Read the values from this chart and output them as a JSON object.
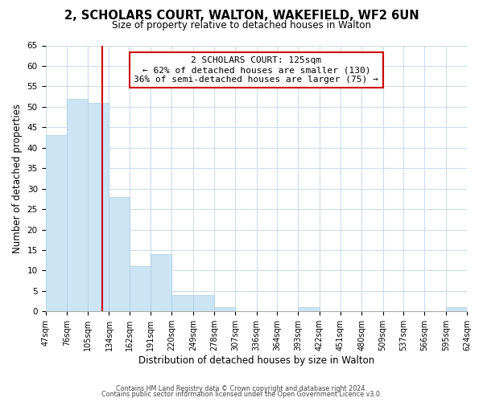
{
  "title": "2, SCHOLARS COURT, WALTON, WAKEFIELD, WF2 6UN",
  "subtitle": "Size of property relative to detached houses in Walton",
  "xlabel": "Distribution of detached houses by size in Walton",
  "ylabel": "Number of detached properties",
  "bar_edges": [
    47,
    76,
    105,
    134,
    162,
    191,
    220,
    249,
    278,
    307,
    336,
    364,
    393,
    422,
    451,
    480,
    509,
    537,
    566,
    595,
    624
  ],
  "bar_heights": [
    43,
    52,
    51,
    28,
    11,
    14,
    4,
    4,
    1,
    0,
    0,
    0,
    1,
    0,
    0,
    0,
    0,
    0,
    0,
    1
  ],
  "bar_color": "#cce5f5",
  "bar_edge_color": "#a8cce0",
  "property_line_x": 125,
  "property_line_color": "#cc0000",
  "annotation_line1": "2 SCHOLARS COURT: 125sqm",
  "annotation_line2": "← 62% of detached houses are smaller (130)",
  "annotation_line3": "36% of semi-detached houses are larger (75) →",
  "annotation_box_color": "#ffffff",
  "annotation_box_edge_color": "#cc0000",
  "ylim": [
    0,
    65
  ],
  "yticks": [
    0,
    5,
    10,
    15,
    20,
    25,
    30,
    35,
    40,
    45,
    50,
    55,
    60,
    65
  ],
  "footer_line1": "Contains HM Land Registry data © Crown copyright and database right 2024.",
  "footer_line2": "Contains public sector information licensed under the Open Government Licence v3.0.",
  "background_color": "#ffffff",
  "grid_color": "#ccddee",
  "title_fontsize": 10.5,
  "subtitle_fontsize": 8.5,
  "annotation_fontsize": 8.0,
  "tick_fontsize": 7.0,
  "axis_label_fontsize": 8.5
}
